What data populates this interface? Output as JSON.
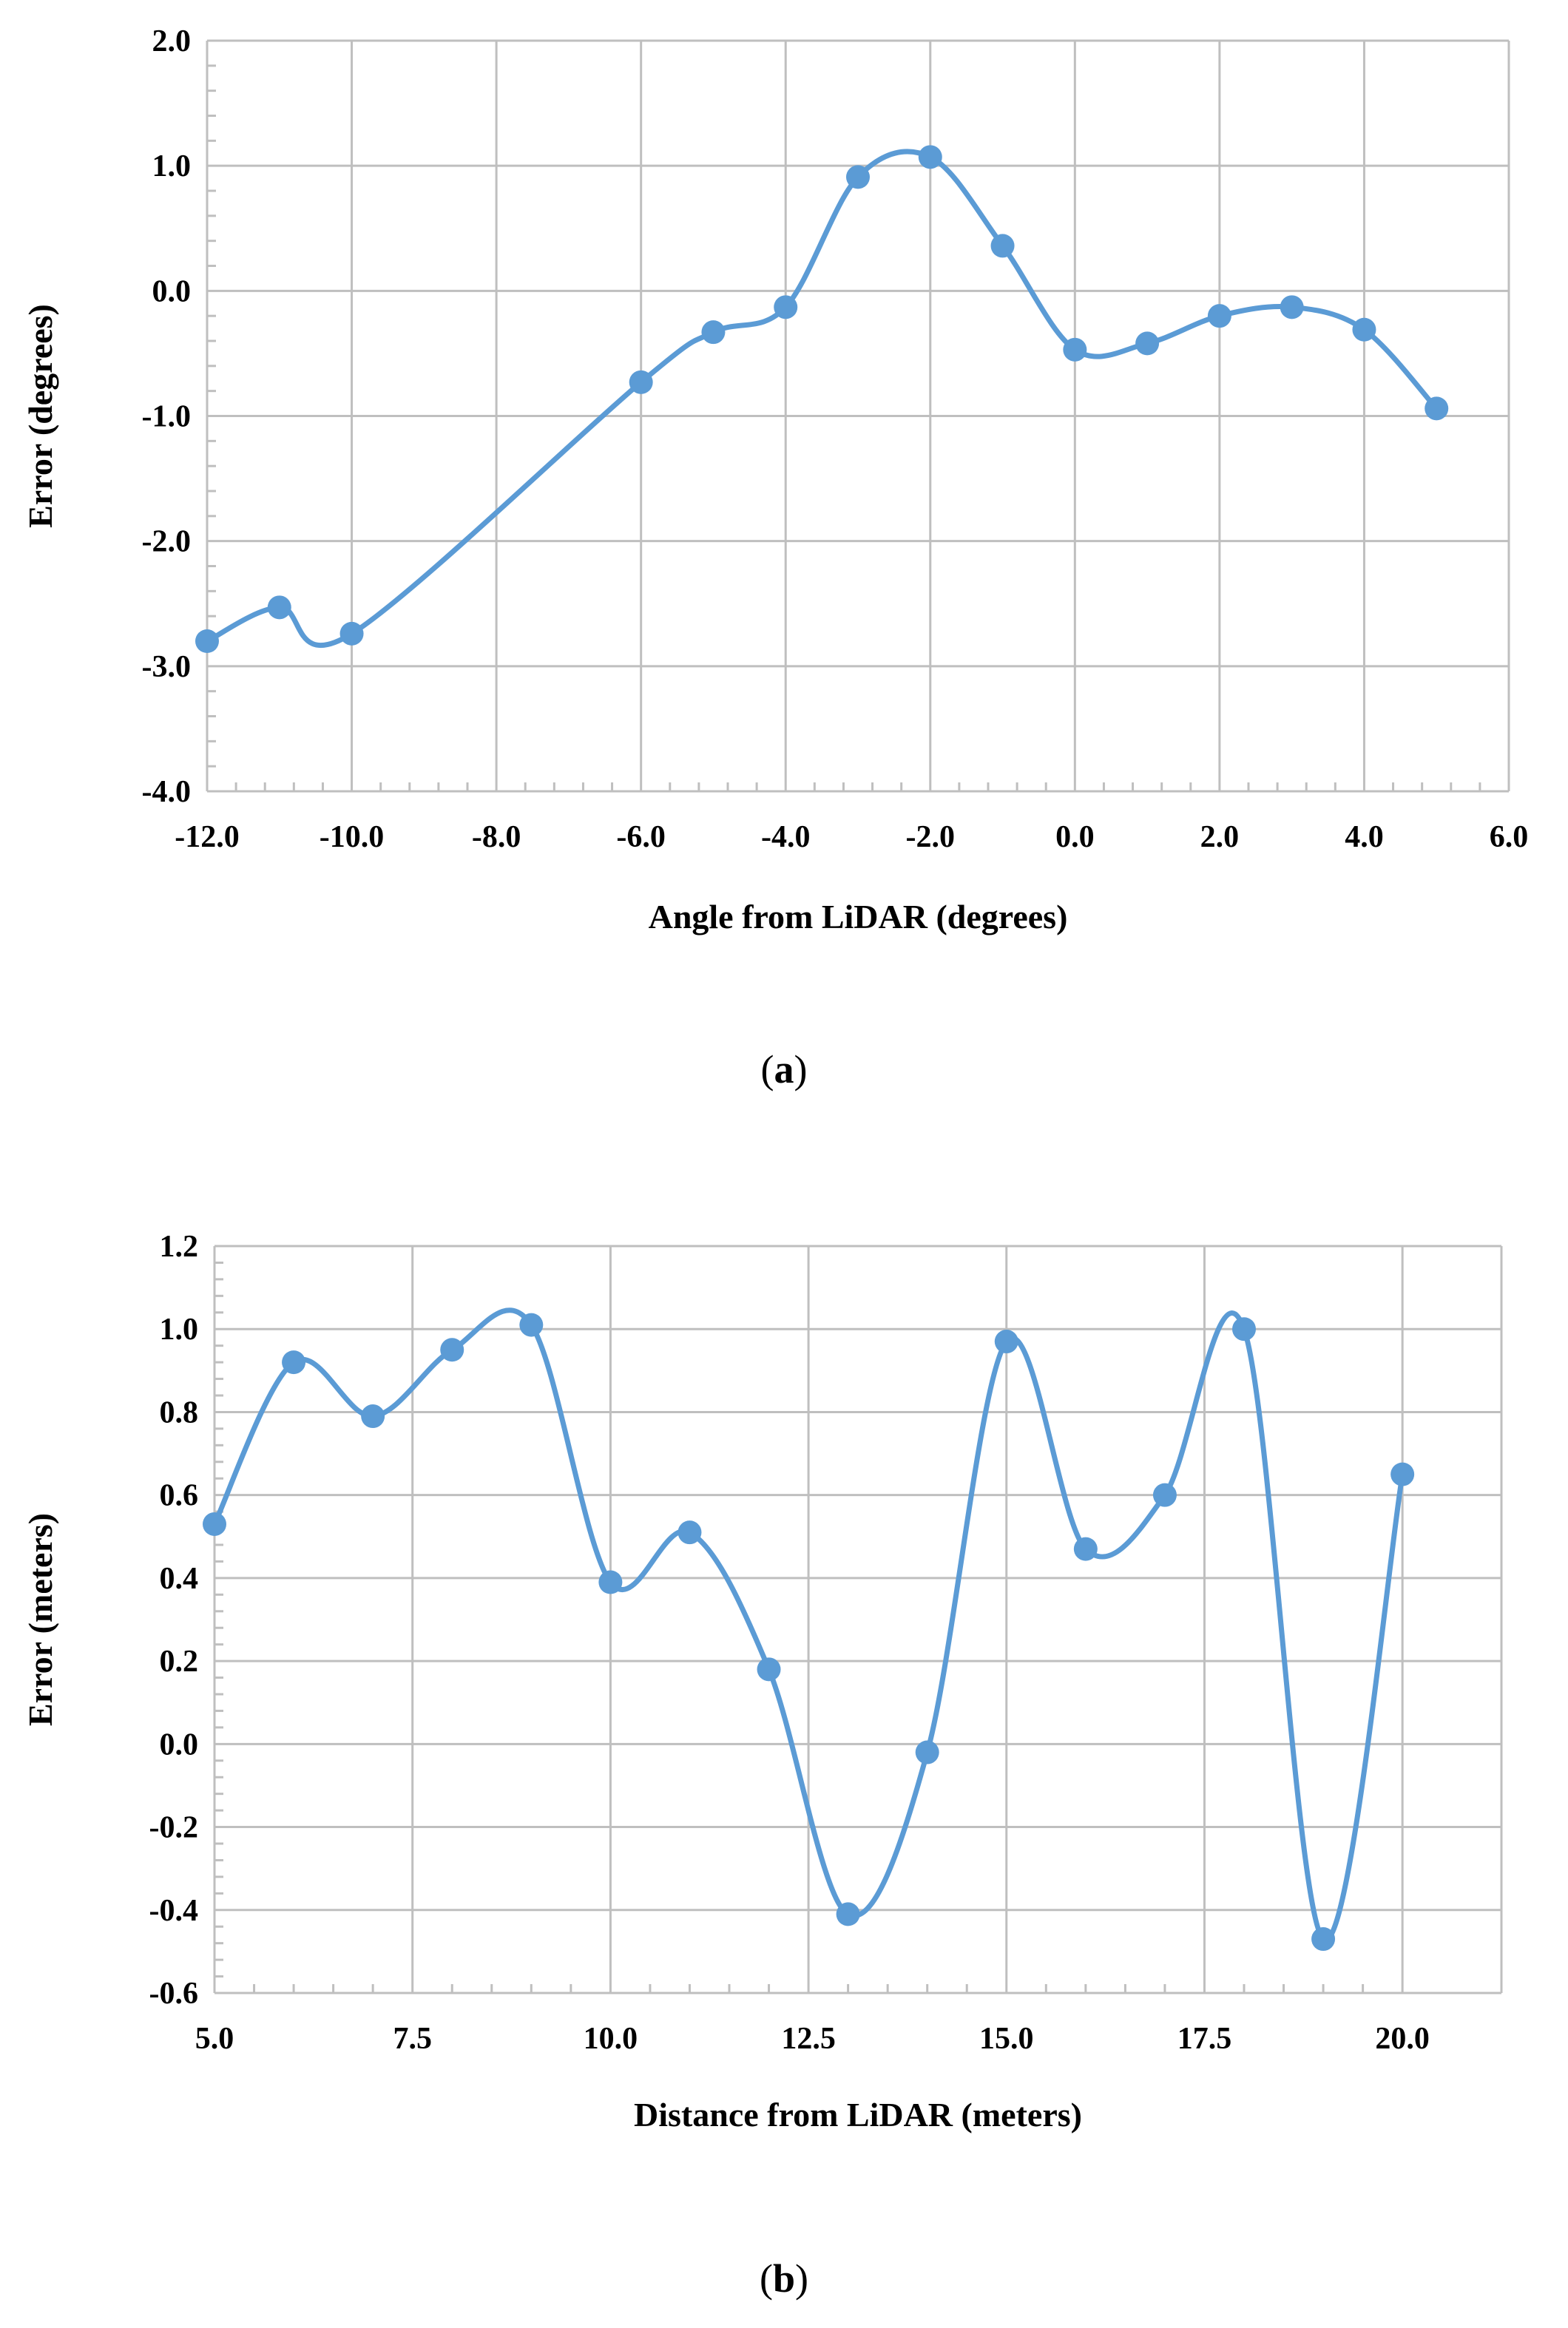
{
  "captions": {
    "a": {
      "open": "(",
      "letter": "a",
      "close": ")"
    },
    "b": {
      "open": "(",
      "letter": "b",
      "close": ")"
    }
  },
  "chart_data": [
    {
      "id": "a",
      "type": "line",
      "smooth": true,
      "markers": true,
      "title": "",
      "xlabel": "Angle from LiDAR (degrees)",
      "ylabel": "Error (degrees)",
      "xlim": [
        -12.0,
        6.0
      ],
      "ylim": [
        -4.0,
        2.0
      ],
      "xticks": [
        -12.0,
        -10.0,
        -8.0,
        -6.0,
        -4.0,
        -2.0,
        0.0,
        2.0,
        4.0,
        6.0
      ],
      "yticks": [
        -4.0,
        -3.0,
        -2.0,
        -1.0,
        0.0,
        1.0,
        2.0
      ],
      "xtick_labels": [
        "-12.0",
        "-10.0",
        "-8.0",
        "-6.0",
        "-4.0",
        "-2.0",
        "0.0",
        "2.0",
        "4.0",
        "6.0"
      ],
      "ytick_labels": [
        "-4.0",
        "-3.0",
        "-2.0",
        "-1.0",
        "0.0",
        "1.0",
        "2.0"
      ],
      "grid": true,
      "color": "#5b9bd5",
      "points": [
        [
          -12,
          -2.8
        ],
        [
          -11,
          -2.53
        ],
        [
          -10,
          -2.74
        ],
        [
          -6,
          -0.73
        ],
        [
          -5,
          -0.33
        ],
        [
          -4,
          -0.13
        ],
        [
          -3,
          0.91
        ],
        [
          -2,
          1.07
        ],
        [
          -1,
          0.36
        ],
        [
          0,
          -0.47
        ],
        [
          1,
          -0.42
        ],
        [
          2,
          -0.2
        ],
        [
          3,
          -0.13
        ],
        [
          4,
          -0.31
        ],
        [
          5,
          -0.94
        ]
      ]
    },
    {
      "id": "b",
      "type": "line",
      "smooth": true,
      "markers": true,
      "title": "",
      "xlabel": "Distance from LiDAR (meters)",
      "ylabel": "Error (meters)",
      "xlim": [
        5.0,
        21.25
      ],
      "ylim": [
        -0.6,
        1.2
      ],
      "xticks": [
        5.0,
        7.5,
        10.0,
        12.5,
        15.0,
        17.5,
        20.0
      ],
      "yticks": [
        -0.6,
        -0.4,
        -0.2,
        0.0,
        0.2,
        0.4,
        0.6,
        0.8,
        1.0,
        1.2
      ],
      "xtick_labels": [
        "5.0",
        "7.5",
        "10.0",
        "12.5",
        "15.0",
        "17.5",
        "20.0"
      ],
      "ytick_labels": [
        "-0.6",
        "-0.4",
        "-0.2",
        "0.0",
        "0.2",
        "0.4",
        "0.6",
        "0.8",
        "1.0",
        "1.2"
      ],
      "grid": true,
      "color": "#5b9bd5",
      "points": [
        [
          5,
          0.53
        ],
        [
          6,
          0.92
        ],
        [
          7,
          0.79
        ],
        [
          8,
          0.95
        ],
        [
          9,
          1.01
        ],
        [
          10,
          0.39
        ],
        [
          11,
          0.51
        ],
        [
          12,
          0.18
        ],
        [
          13,
          -0.41
        ],
        [
          14,
          -0.02
        ],
        [
          15,
          0.97
        ],
        [
          16,
          0.47
        ],
        [
          17,
          0.6
        ],
        [
          18,
          1.0
        ],
        [
          19,
          -0.47
        ],
        [
          20,
          0.65
        ]
      ]
    }
  ]
}
